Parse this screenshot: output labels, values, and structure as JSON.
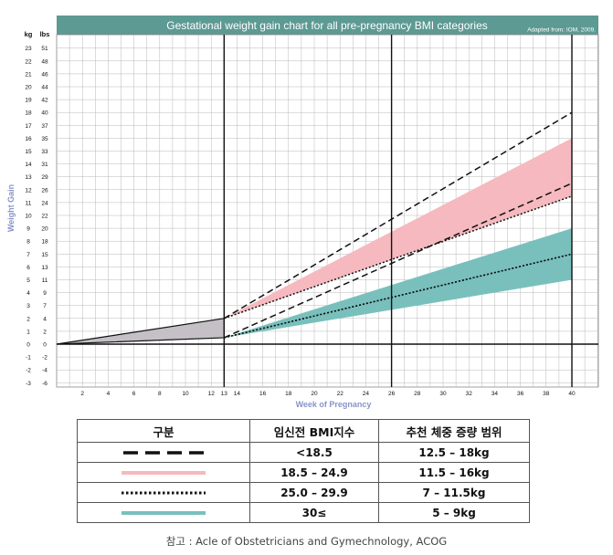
{
  "chart_data": {
    "type": "line",
    "title": "Gestational weight gain chart for all pre-pregnancy BMI categories",
    "source_note": "Adapted from: IOM, 2009.",
    "xlabel": "Week of Pregnancy",
    "ylabel": "Weight Gain",
    "xlim": [
      0,
      41
    ],
    "ylim": [
      -3,
      23.5
    ],
    "x_ticks": [
      2,
      4,
      6,
      8,
      10,
      12,
      13,
      14,
      16,
      18,
      20,
      22,
      24,
      26,
      28,
      30,
      32,
      34,
      36,
      38,
      40
    ],
    "kg_header": "kg",
    "lbs_header": "lbs",
    "kg_ticks": [
      23,
      22,
      21,
      20,
      19,
      18,
      17,
      16,
      15,
      14,
      13,
      12,
      11,
      10,
      9,
      8,
      7,
      6,
      5,
      4,
      3,
      2,
      1,
      0,
      -1,
      -2,
      -3
    ],
    "lbs_ticks": [
      51,
      48,
      46,
      44,
      42,
      40,
      37,
      35,
      33,
      31,
      29,
      26,
      24,
      22,
      20,
      18,
      15,
      13,
      11,
      9,
      7,
      4,
      2,
      0,
      -2,
      -4,
      -6
    ],
    "major_weeks": [
      13,
      26,
      40
    ],
    "first_trimester": {
      "x": [
        0,
        13
      ],
      "lower": [
        0,
        0.5
      ],
      "upper": [
        0,
        2
      ]
    },
    "bands": [
      {
        "name": "18.5 – 24.9",
        "color": "#f5b9bf",
        "x": [
          13,
          40
        ],
        "lower": [
          2,
          11.5
        ],
        "upper": [
          2,
          16
        ]
      },
      {
        "name": "30≤",
        "color": "#79c0bd",
        "x": [
          13,
          40
        ],
        "lower": [
          0.5,
          5
        ],
        "upper": [
          0.5,
          9
        ]
      }
    ],
    "series": [
      {
        "name": "<18.5",
        "style": "long-dash",
        "x": [
          13,
          40
        ],
        "lower": [
          0.5,
          12.5
        ],
        "upper": [
          2,
          18
        ]
      },
      {
        "name": "25.0 – 29.9",
        "style": "dotted",
        "x": [
          13,
          40
        ],
        "lower": [
          0.5,
          7
        ],
        "upper": [
          2,
          11.5
        ]
      },
      {
        "name": "30≤",
        "style": "dotted",
        "x": [
          13,
          40
        ],
        "values": [
          0.5,
          7
        ]
      }
    ],
    "colors": {
      "header": "#5c9a93",
      "grid": "#b8b8b8",
      "axis_text": "#8a93c8",
      "black": "#111111"
    }
  },
  "legend_table": {
    "headers": [
      "구분",
      "임신전 BMI지수",
      "추천 체중 증량 범위"
    ],
    "rows": [
      {
        "style": "long-dash",
        "bmi": "<18.5",
        "gain": "12.5 – 18kg"
      },
      {
        "style": "pink-band",
        "bmi": "18.5 – 24.9",
        "gain": "11.5 – 16kg"
      },
      {
        "style": "dotted",
        "bmi": "25.0 – 29.9",
        "gain": "7 – 11.5kg"
      },
      {
        "style": "teal-band",
        "bmi": "30≤",
        "gain": "5 – 9kg"
      }
    ]
  },
  "footer": "참고 : Acle of Obstetricians and Gymechnology, ACOG"
}
